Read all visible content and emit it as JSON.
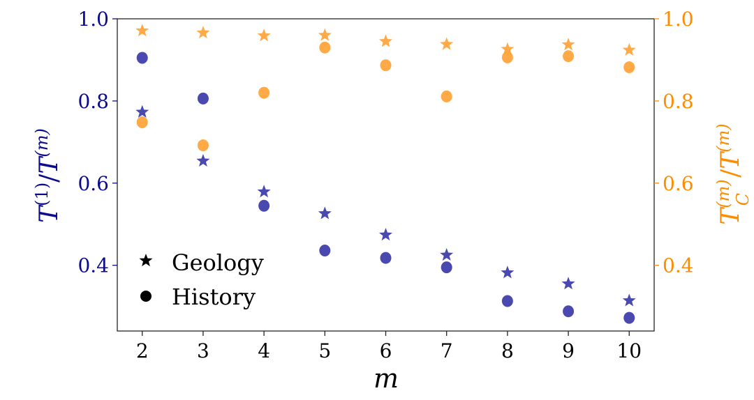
{
  "chart_data": {
    "type": "scatter",
    "title": "",
    "xlabel": "m",
    "ylabel_left": {
      "base": "T",
      "sup1": "(1)",
      "slash": "/",
      "base2": "T",
      "sup2": "(m)"
    },
    "ylabel_right": {
      "base": "T",
      "sub": "C",
      "sup1": "(m)",
      "slash": "/",
      "base2": "T",
      "sup2": "(m)"
    },
    "x": [
      2,
      3,
      4,
      5,
      6,
      7,
      8,
      9,
      10
    ],
    "xlim": [
      1.59,
      10.41
    ],
    "ylim_left": [
      0.24,
      1.0
    ],
    "ylim_right": [
      0.24,
      1.0
    ],
    "xticks": [
      "2",
      "3",
      "4",
      "5",
      "6",
      "7",
      "8",
      "9",
      "10"
    ],
    "yticks_left": [
      "0.4",
      "0.6",
      "0.8",
      "1.0"
    ],
    "yticks_right": [
      "0.4",
      "0.6",
      "0.8",
      "1.0"
    ],
    "grid": false,
    "colors": {
      "left": "#3535a6",
      "right": "#ffa033",
      "left_axis": "#0b0b8c",
      "right_axis": "#ff8c00"
    },
    "series": [
      {
        "name": "Geology",
        "axis": "left",
        "marker": "star",
        "values": [
          0.773,
          0.654,
          0.579,
          0.526,
          0.474,
          0.425,
          0.382,
          0.355,
          0.314
        ]
      },
      {
        "name": "History",
        "axis": "left",
        "marker": "circle",
        "values": [
          0.905,
          0.806,
          0.545,
          0.436,
          0.418,
          0.395,
          0.313,
          0.288,
          0.272
        ]
      },
      {
        "name": "Geology",
        "axis": "right",
        "marker": "star",
        "values": [
          0.971,
          0.966,
          0.959,
          0.96,
          0.945,
          0.938,
          0.926,
          0.937,
          0.924
        ]
      },
      {
        "name": "History",
        "axis": "right",
        "marker": "circle",
        "values": [
          0.748,
          0.692,
          0.82,
          0.93,
          0.887,
          0.811,
          0.906,
          0.909,
          0.882
        ]
      }
    ],
    "legend": {
      "placement": "lower-left",
      "entries": [
        {
          "label": "Geology",
          "marker": "star"
        },
        {
          "label": "History",
          "marker": "circle"
        }
      ]
    }
  }
}
